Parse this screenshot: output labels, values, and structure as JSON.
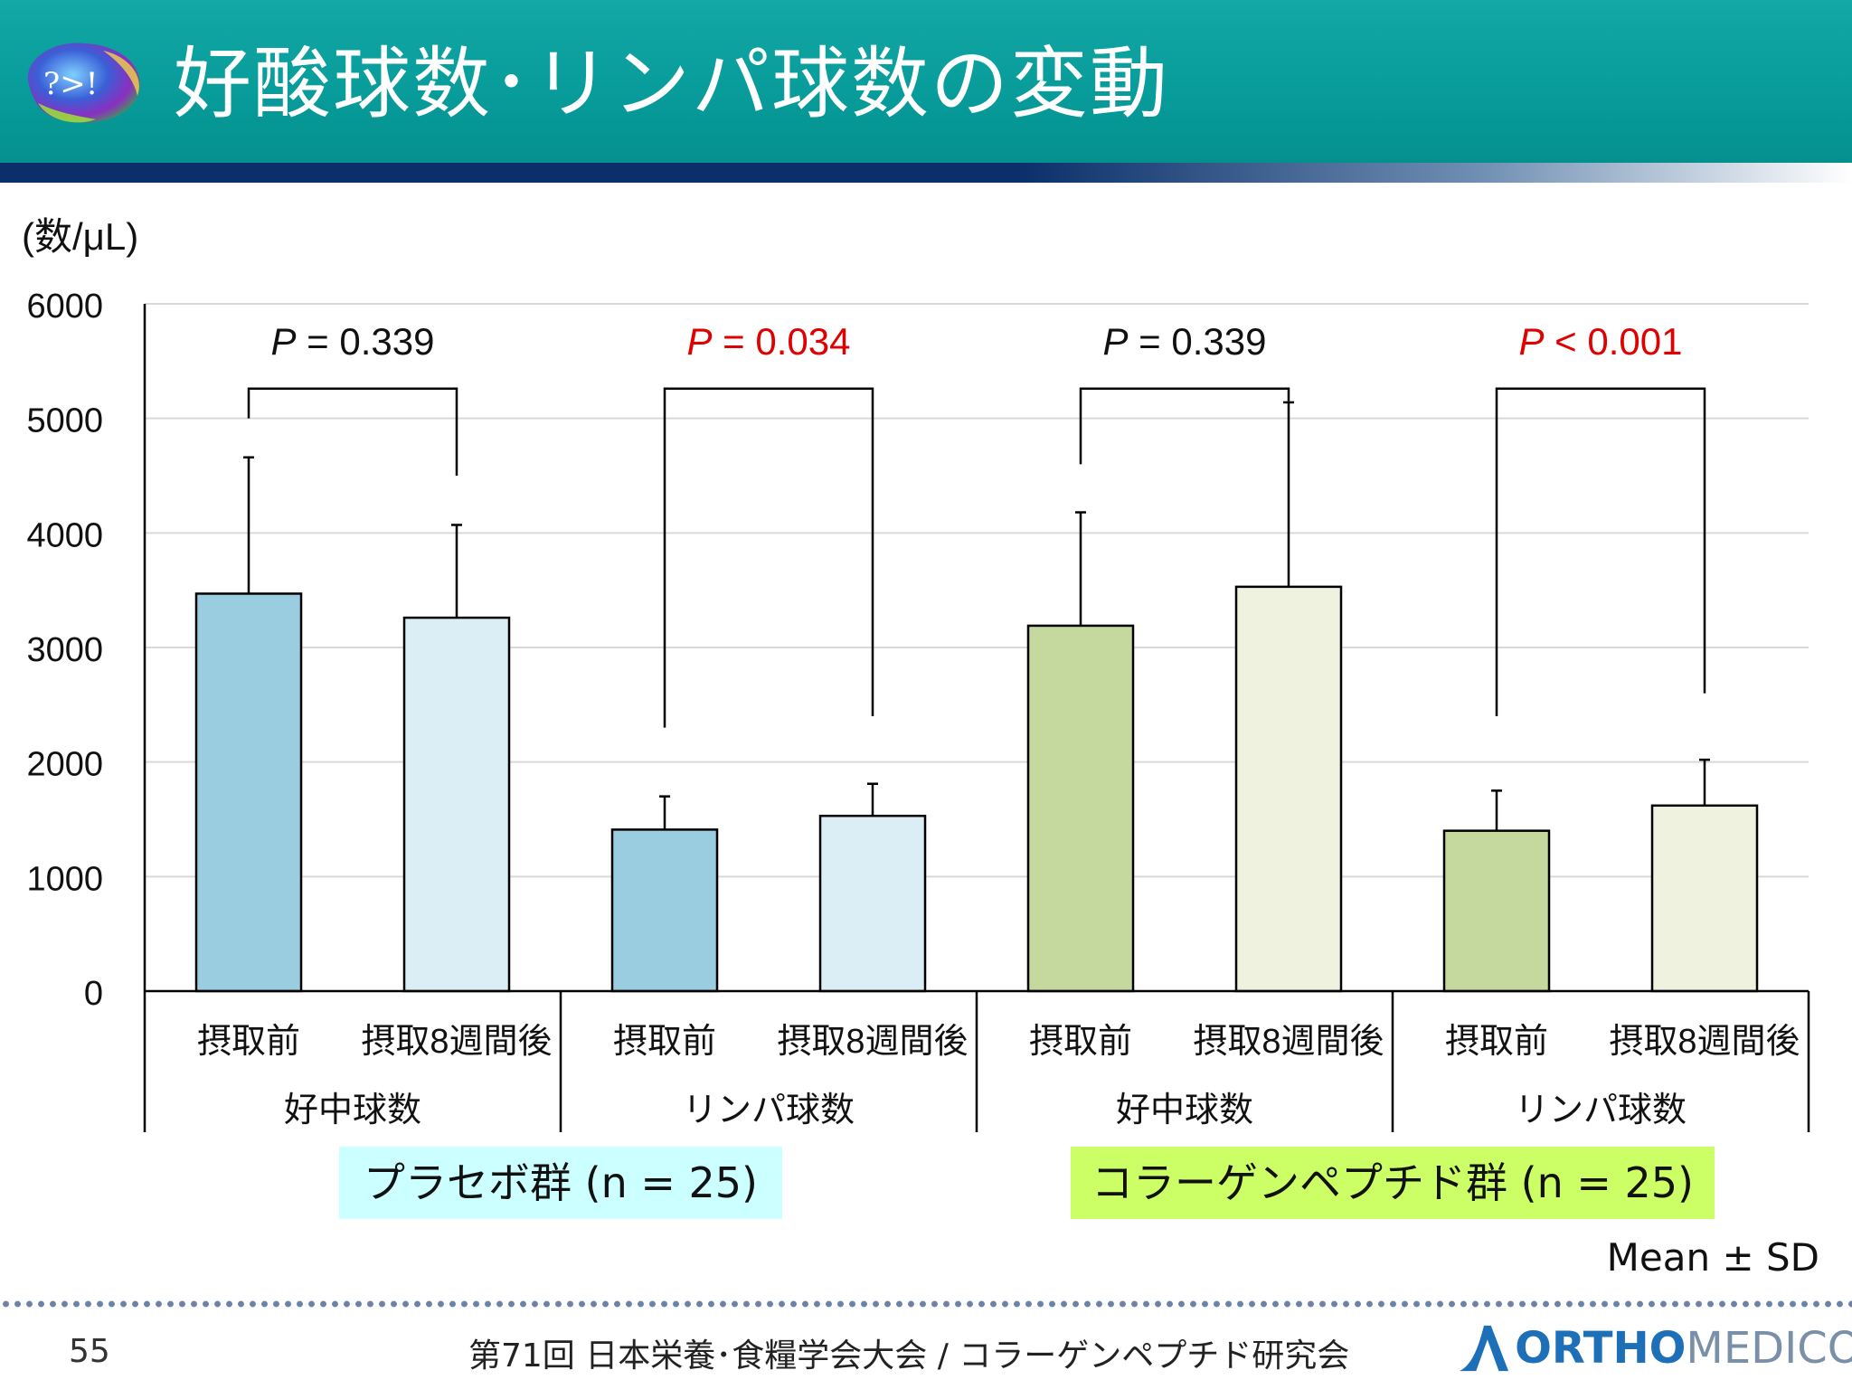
{
  "title": "好酸球数･リンパ球数の変動",
  "logo_text": "?>!",
  "colors": {
    "placebo_before": "#99cddf",
    "placebo_after": "#dbeef5",
    "collagen_before": "#c5d89d",
    "collagen_after": "#eef2df",
    "placebo_box": "#ccffff",
    "collagen_box": "#ccff66",
    "significant": "#e00000",
    "header": "#0aa19f"
  },
  "chart_data": {
    "type": "bar",
    "ylabel": "(数/μL)",
    "ylim": [
      0,
      6000
    ],
    "yticks": [
      0,
      1000,
      2000,
      3000,
      4000,
      5000,
      6000
    ],
    "grid": true,
    "error_bars": "Mean ± SD",
    "categories": [
      "摂取前",
      "摂取8週間後",
      "摂取前",
      "摂取8週間後",
      "摂取前",
      "摂取8週間後",
      "摂取前",
      "摂取8週間後"
    ],
    "values": [
      3470,
      3260,
      1410,
      1530,
      3190,
      3530,
      1400,
      1620
    ],
    "sd": [
      1190,
      810,
      290,
      280,
      990,
      1610,
      350,
      400
    ],
    "bar_colors": [
      "placebo_before",
      "placebo_after",
      "placebo_before",
      "placebo_after",
      "collagen_before",
      "collagen_after",
      "collagen_before",
      "collagen_after"
    ],
    "subgroups": [
      {
        "label": "好中球数",
        "bars": [
          0,
          1
        ]
      },
      {
        "label": "リンパ球数",
        "bars": [
          2,
          3
        ]
      },
      {
        "label": "好中球数",
        "bars": [
          4,
          5
        ]
      },
      {
        "label": "リンパ球数",
        "bars": [
          6,
          7
        ]
      }
    ],
    "groups": [
      {
        "label": "プラセボ群 (n = 25)",
        "subgroups": [
          0,
          1
        ],
        "color": "placebo_box"
      },
      {
        "label": "コラーゲンペプチド群 (n = 25)",
        "subgroups": [
          2,
          3
        ],
        "color": "collagen_box"
      }
    ],
    "comparisons": [
      {
        "bars": [
          0,
          1
        ],
        "p_label": "P",
        "p_value": "= 0.339",
        "significant": false,
        "left_end": 5000,
        "right_end": 4500
      },
      {
        "bars": [
          2,
          3
        ],
        "p_label": "P",
        "p_value": "= 0.034",
        "significant": true,
        "left_end": 2300,
        "right_end": 2400
      },
      {
        "bars": [
          4,
          5
        ],
        "p_label": "P",
        "p_value": "= 0.339",
        "significant": false,
        "left_end": 4600,
        "right_end": 5150
      },
      {
        "bars": [
          6,
          7
        ],
        "p_label": "P",
        "p_value": "< 0.001",
        "significant": true,
        "left_end": 2400,
        "right_end": 2600
      }
    ],
    "bracket_y": 5260
  },
  "note": "Mean ± SD",
  "footer": {
    "page_number": "55",
    "conference": "第71回 日本栄養･食糧学会大会 / コラーゲンペプチド研究会",
    "brand_bold": "ORTHO",
    "brand_light": " MEDICO"
  }
}
